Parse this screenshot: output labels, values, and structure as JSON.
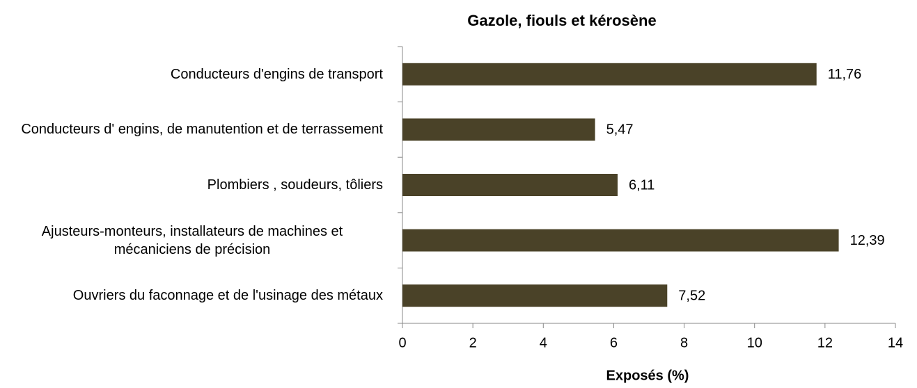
{
  "chart_data": {
    "type": "bar",
    "orientation": "horizontal",
    "title": "Gazole, fiouls et kérosène",
    "x_label": "Exposés (%)",
    "categories": [
      "Conducteurs d'engins de transport",
      "Conducteurs d' engins, de manutention et de terrassement",
      "Plombiers , soudeurs, tôliers",
      "Ajusteurs-monteurs, installateurs de machines et mécaniciens de précision",
      "Ouvriers du faconnage et de l'usinage des métaux"
    ],
    "values": [
      11.76,
      5.47,
      6.11,
      12.39,
      7.52
    ],
    "value_labels": [
      "11,76",
      "5,47",
      "6,11",
      "12,39",
      "7,52"
    ],
    "color": "#4a4228",
    "xlim": [
      0,
      14
    ],
    "xticks": [
      0,
      2,
      4,
      6,
      8,
      10,
      12,
      14
    ]
  }
}
